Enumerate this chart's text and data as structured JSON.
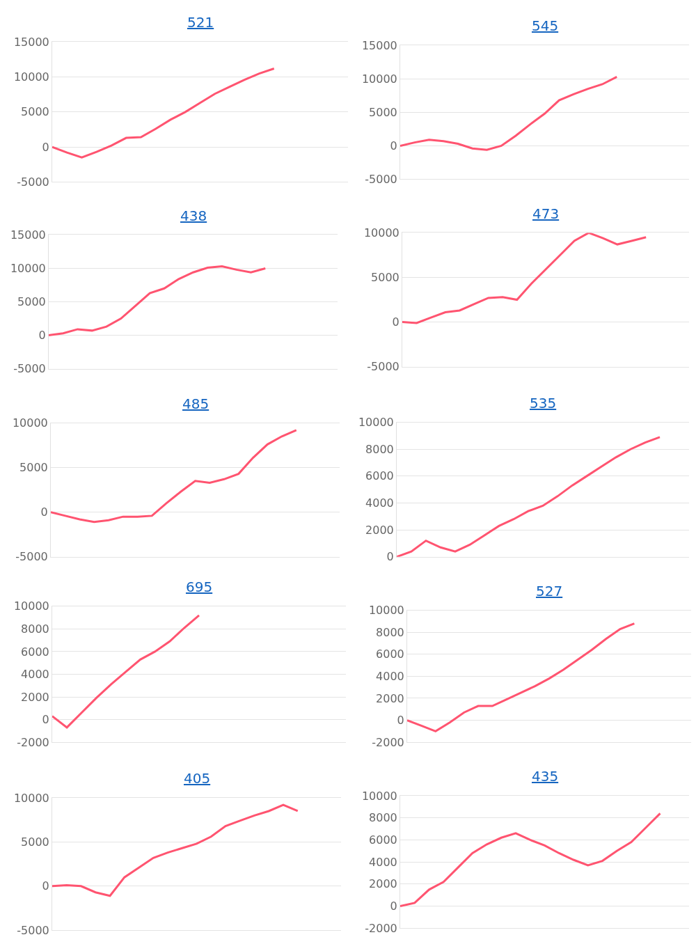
{
  "chart_data": [
    {
      "type": "line",
      "title": "521",
      "categories": [
        null,
        null,
        null,
        null,
        null,
        null,
        null,
        null,
        null,
        null,
        null,
        null,
        null,
        null,
        null,
        null,
        null,
        null,
        null,
        null,
        null
      ],
      "series": [
        {
          "color": "#ff5470",
          "values": [
            0,
            -800,
            -1500,
            -700,
            200,
            1300,
            1400,
            2600,
            3900,
            5000,
            6300,
            7600,
            8600,
            9600,
            10500,
            11200,
            null,
            null,
            null,
            null,
            null
          ]
        }
      ],
      "ylim": [
        -5000,
        15000
      ],
      "yticks": [
        -5000,
        0,
        5000,
        10000,
        15000
      ],
      "grid": "y"
    },
    {
      "type": "line",
      "title": "545",
      "categories": [
        null,
        null,
        null,
        null,
        null,
        null,
        null,
        null,
        null,
        null,
        null,
        null,
        null,
        null,
        null,
        null,
        null,
        null,
        null,
        null,
        null
      ],
      "series": [
        {
          "color": "#ff5470",
          "values": [
            0,
            500,
            900,
            700,
            300,
            -400,
            -600,
            0,
            1500,
            3200,
            4800,
            6800,
            7700,
            8500,
            9200,
            10300,
            null,
            null,
            null,
            null,
            null
          ]
        }
      ],
      "ylim": [
        -5000,
        15000
      ],
      "yticks": [
        -5000,
        0,
        5000,
        10000,
        15000
      ],
      "grid": "y"
    },
    {
      "type": "line",
      "title": "438",
      "categories": [
        null,
        null,
        null,
        null,
        null,
        null,
        null,
        null,
        null,
        null,
        null,
        null,
        null,
        null,
        null,
        null,
        null,
        null,
        null,
        null,
        null
      ],
      "series": [
        {
          "color": "#ff5470",
          "values": [
            0,
            300,
            900,
            700,
            1300,
            2500,
            4400,
            6300,
            7000,
            8400,
            9400,
            10100,
            10300,
            9800,
            9400,
            10000,
            null,
            null,
            null,
            null,
            null
          ]
        }
      ],
      "ylim": [
        -5000,
        15000
      ],
      "yticks": [
        -5000,
        0,
        5000,
        10000,
        15000
      ],
      "grid": "y"
    },
    {
      "type": "line",
      "title": "473",
      "categories": [
        null,
        null,
        null,
        null,
        null,
        null,
        null,
        null,
        null,
        null,
        null,
        null,
        null,
        null,
        null,
        null,
        null,
        null,
        null,
        null,
        null
      ],
      "series": [
        {
          "color": "#ff5470",
          "values": [
            0,
            -100,
            500,
            1100,
            1300,
            2000,
            2700,
            2800,
            2500,
            4300,
            5900,
            7500,
            9100,
            10000,
            9400,
            8700,
            9100,
            9500,
            null,
            null,
            null
          ]
        }
      ],
      "ylim": [
        -5000,
        10000
      ],
      "yticks": [
        -5000,
        0,
        5000,
        10000
      ],
      "grid": "y"
    },
    {
      "type": "line",
      "title": "485",
      "categories": [
        null,
        null,
        null,
        null,
        null,
        null,
        null,
        null,
        null,
        null,
        null,
        null,
        null,
        null,
        null,
        null,
        null,
        null,
        null,
        null,
        null
      ],
      "series": [
        {
          "color": "#ff5470",
          "values": [
            0,
            -400,
            -800,
            -1100,
            -900,
            -500,
            -500,
            -400,
            1000,
            2300,
            3500,
            3300,
            3700,
            4300,
            6100,
            7600,
            8500,
            9200,
            null,
            null,
            null
          ]
        }
      ],
      "ylim": [
        -5000,
        10000
      ],
      "yticks": [
        -5000,
        0,
        5000,
        10000
      ],
      "grid": "y"
    },
    {
      "type": "line",
      "title": "535",
      "categories": [
        null,
        null,
        null,
        null,
        null,
        null,
        null,
        null,
        null,
        null,
        null,
        null,
        null,
        null,
        null,
        null,
        null,
        null,
        null,
        null,
        null
      ],
      "series": [
        {
          "color": "#ff5470",
          "values": [
            0,
            400,
            1200,
            700,
            400,
            900,
            1600,
            2300,
            2800,
            3400,
            3800,
            4500,
            5300,
            6000,
            6700,
            7400,
            8000,
            8500,
            8900,
            null,
            null
          ]
        }
      ],
      "ylim": [
        0,
        10000
      ],
      "yticks": [
        0,
        2000,
        4000,
        6000,
        8000,
        10000
      ],
      "grid": "y"
    },
    {
      "type": "line",
      "title": "695",
      "categories": [
        null,
        null,
        null,
        null,
        null,
        null,
        null,
        null,
        null,
        null,
        null,
        null,
        null,
        null,
        null,
        null,
        null,
        null,
        null,
        null,
        null
      ],
      "series": [
        {
          "color": "#ff5470",
          "values": [
            300,
            -700,
            600,
            1900,
            3100,
            4200,
            5300,
            6000,
            6900,
            8100,
            9200,
            null,
            null,
            null,
            null,
            null,
            null,
            null,
            null,
            null,
            null
          ]
        }
      ],
      "ylim": [
        -2000,
        10000
      ],
      "yticks": [
        -2000,
        0,
        2000,
        4000,
        6000,
        8000,
        10000
      ],
      "grid": "y"
    },
    {
      "type": "line",
      "title": "527",
      "categories": [
        null,
        null,
        null,
        null,
        null,
        null,
        null,
        null,
        null,
        null,
        null,
        null,
        null,
        null,
        null,
        null,
        null,
        null,
        null,
        null,
        null
      ],
      "series": [
        {
          "color": "#ff5470",
          "values": [
            0,
            -500,
            -1000,
            -200,
            700,
            1300,
            1300,
            1900,
            2500,
            3100,
            3800,
            4600,
            5500,
            6400,
            7400,
            8300,
            8800,
            null,
            null,
            null,
            null
          ]
        }
      ],
      "ylim": [
        -2000,
        10000
      ],
      "yticks": [
        -2000,
        0,
        2000,
        4000,
        6000,
        8000,
        10000
      ],
      "grid": "y"
    },
    {
      "type": "line",
      "title": "405",
      "categories": [
        null,
        null,
        null,
        null,
        null,
        null,
        null,
        null,
        null,
        null,
        null,
        null,
        null,
        null,
        null,
        null,
        null,
        null,
        null,
        null,
        null
      ],
      "series": [
        {
          "color": "#ff5470",
          "values": [
            0,
            100,
            0,
            -700,
            -1100,
            1000,
            2100,
            3200,
            3800,
            4300,
            4800,
            5600,
            6800,
            7400,
            8000,
            8500,
            9200,
            8500,
            null,
            null,
            null
          ]
        }
      ],
      "ylim": [
        -5000,
        10000
      ],
      "yticks": [
        -5000,
        0,
        5000,
        10000
      ],
      "grid": "y"
    },
    {
      "type": "line",
      "title": "435",
      "categories": [
        null,
        null,
        null,
        null,
        null,
        null,
        null,
        null,
        null,
        null,
        null,
        null,
        null,
        null,
        null,
        null,
        null,
        null,
        null,
        null,
        null
      ],
      "series": [
        {
          "color": "#ff5470",
          "values": [
            0,
            300,
            1500,
            2200,
            3500,
            4800,
            5600,
            6200,
            6600,
            6000,
            5500,
            4800,
            4200,
            3700,
            4100,
            5000,
            5800,
            7100,
            8400,
            null,
            null
          ]
        }
      ],
      "ylim": [
        -2000,
        10000
      ],
      "yticks": [
        -2000,
        0,
        2000,
        4000,
        6000,
        8000,
        10000
      ],
      "grid": "y"
    }
  ]
}
